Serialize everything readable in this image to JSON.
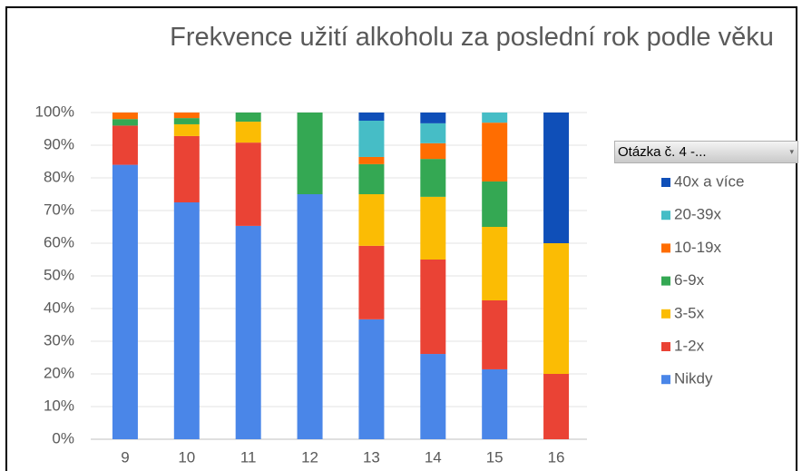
{
  "chart_data": {
    "type": "stacked_bar",
    "title": "Frekvence užití alkoholu za poslední rok podle věku",
    "legend_title": "Otázka č. 4 -...",
    "categories": [
      "9",
      "10",
      "11",
      "12",
      "13",
      "14",
      "15",
      "16"
    ],
    "series": [
      {
        "name": "Nikdy",
        "color": "#4a86e8",
        "values": [
          84,
          72.5,
          65.3,
          75,
          36.7,
          26.1,
          21.4,
          0
        ]
      },
      {
        "name": "1-2x",
        "color": "#ea4335",
        "values": [
          12,
          20.3,
          25.5,
          0,
          22.5,
          28.9,
          21.1,
          20
        ]
      },
      {
        "name": "3-5x",
        "color": "#fbbc04",
        "values": [
          0,
          3.6,
          6.4,
          0,
          15.8,
          19.2,
          22.5,
          40
        ]
      },
      {
        "name": "6-9x",
        "color": "#34a853",
        "values": [
          2,
          1.9,
          2.8,
          25,
          9.2,
          11.6,
          13.9,
          0
        ]
      },
      {
        "name": "10-19x",
        "color": "#ff6d01",
        "values": [
          2,
          1.7,
          0,
          0,
          2.2,
          4.8,
          18,
          0
        ]
      },
      {
        "name": "20-39x",
        "color": "#46bdc6",
        "values": [
          0,
          0,
          0,
          0,
          11.1,
          6.1,
          3.1,
          0
        ]
      },
      {
        "name": "40x a více",
        "color": "#0f4fb8",
        "values": [
          0,
          0,
          0,
          0,
          2.5,
          3.3,
          0,
          40
        ]
      }
    ],
    "ylim": [
      0,
      100
    ],
    "yticks": [
      {
        "value": 0,
        "label": "0%"
      },
      {
        "value": 10,
        "label": "10%"
      },
      {
        "value": 20,
        "label": "20%"
      },
      {
        "value": 30,
        "label": "30%"
      },
      {
        "value": 40,
        "label": "40%"
      },
      {
        "value": 50,
        "label": "50%"
      },
      {
        "value": 60,
        "label": "60%"
      },
      {
        "value": 70,
        "label": "70%"
      },
      {
        "value": 80,
        "label": "80%"
      },
      {
        "value": 90,
        "label": "90%"
      },
      {
        "value": 100,
        "label": "100%"
      }
    ],
    "grid": true
  }
}
